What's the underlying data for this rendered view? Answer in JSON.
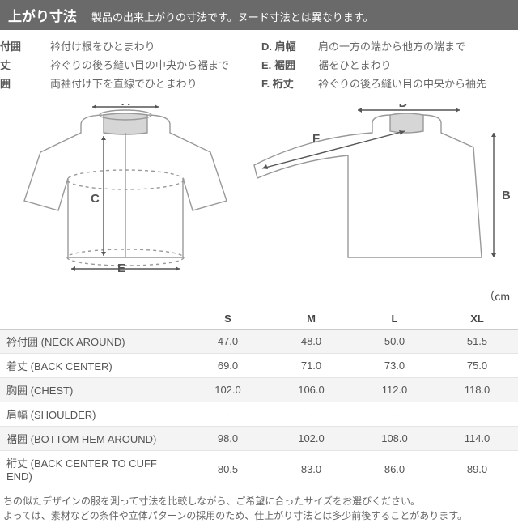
{
  "header": {
    "title": "上がり寸法",
    "subtitle": "製品の出来上がりの寸法です。ヌード寸法とは異なります。"
  },
  "legend_left": [
    {
      "key": "付囲",
      "desc": "衿付け根をひとまわり"
    },
    {
      "key": "丈",
      "desc": "衿ぐりの後ろ縫い目の中央から裾まで"
    },
    {
      "key": "囲",
      "desc": "両袖付け下を直線でひとまわり"
    }
  ],
  "legend_right": [
    {
      "key": "D. 肩幅",
      "desc": "肩の一方の端から他方の端まで"
    },
    {
      "key": "E. 裾囲",
      "desc": "裾をひとまわり"
    },
    {
      "key": "F. 裄丈",
      "desc": "衿ぐりの後ろ縫い目の中央から袖先"
    }
  ],
  "diagram_labels": {
    "a": "A",
    "b": "B",
    "c": "C",
    "d": "D",
    "e": "E",
    "f": "F"
  },
  "unit": "（cm",
  "sizes": [
    "S",
    "M",
    "L",
    "XL"
  ],
  "rows": [
    {
      "label": "衿付囲 (NECK AROUND)",
      "vals": [
        "47.0",
        "48.0",
        "50.0",
        "51.5"
      ]
    },
    {
      "label": "着丈 (BACK CENTER)",
      "vals": [
        "69.0",
        "71.0",
        "73.0",
        "75.0"
      ]
    },
    {
      "label": "胸囲 (CHEST)",
      "vals": [
        "102.0",
        "106.0",
        "112.0",
        "118.0"
      ]
    },
    {
      "label": "肩幅 (SHOULDER)",
      "vals": [
        "-",
        "-",
        "-",
        "-"
      ]
    },
    {
      "label": "裾囲 (BOTTOM HEM AROUND)",
      "vals": [
        "98.0",
        "102.0",
        "108.0",
        "114.0"
      ]
    },
    {
      "label": "裄丈 (BACK CENTER TO CUFF END)",
      "vals": [
        "80.5",
        "83.0",
        "86.0",
        "89.0"
      ]
    }
  ],
  "footnote": [
    "ちの似たデザインの服を測って寸法を比較しながら、ご希望に合ったサイズをお選びください。",
    "よっては、素材などの条件や立体パターンの採用のため、仕上がり寸法とは多少前後することがあります。"
  ],
  "colors": {
    "stroke": "#999999",
    "collar_fill": "#d6d6d6",
    "body_fill": "#ffffff"
  }
}
